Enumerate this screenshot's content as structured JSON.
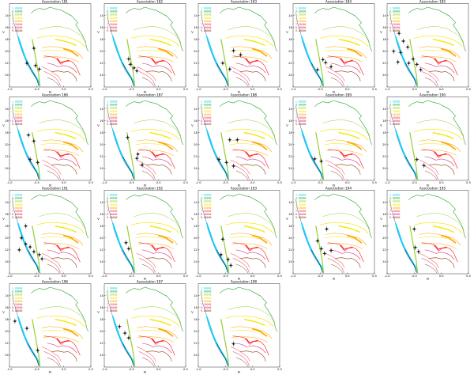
{
  "chart_data": {
    "type": "line",
    "xlabel": "R",
    "ylabel": "V",
    "xlim": [
      -1.0,
      0.5
    ],
    "ylim": [
      26,
      12
    ],
    "x_ticks": [
      "-1.0",
      "-0.5",
      "0.0",
      "0.5"
    ],
    "y_ticks": [
      "14",
      "16",
      "18",
      "20",
      "22",
      "24"
    ],
    "legend": {
      "placement": "top-left",
      "entries": [
        {
          "label": "1.00000",
          "color": "#00d8ff"
        },
        {
          "label": "4.00000",
          "color": "#28a428"
        },
        {
          "label": "5.00000",
          "color": "#9acd32"
        },
        {
          "label": "6.00000",
          "color": "#f5e600"
        },
        {
          "label": "7.00000",
          "color": "#ffa500"
        },
        {
          "label": "7.50000",
          "color": "#ff3030"
        },
        {
          "label": "8.00000",
          "color": "#cc1f6f"
        },
        {
          "label": "9.00000",
          "color": "#8b3a0a"
        }
      ]
    },
    "panels": [
      {
        "title": "Association 181",
        "points": [
          [
            -0.55,
            19.5
          ],
          [
            -0.68,
            22.0
          ],
          [
            -0.52,
            22.4
          ],
          [
            -0.45,
            23.0
          ]
        ]
      },
      {
        "title": "Association 182",
        "points": [
          [
            -0.55,
            21.3
          ],
          [
            -0.52,
            22.2
          ],
          [
            -0.45,
            22.8
          ],
          [
            -0.4,
            23.3
          ]
        ]
      },
      {
        "title": "Association 183",
        "points": [
          [
            -0.35,
            19.9
          ],
          [
            -0.22,
            20.6
          ],
          [
            -0.55,
            22.0
          ],
          [
            -0.42,
            23.0
          ]
        ]
      },
      {
        "title": "Association 184",
        "points": [
          [
            -0.45,
            21.4
          ],
          [
            -0.4,
            21.9
          ],
          [
            -0.3,
            22.6
          ],
          [
            -0.55,
            23.1
          ]
        ]
      },
      {
        "title": "Association 185",
        "points": [
          [
            -0.78,
            17.0
          ],
          [
            -0.7,
            18.3
          ],
          [
            -0.88,
            20.0
          ],
          [
            -0.75,
            20.2
          ],
          [
            -0.8,
            21.8
          ],
          [
            -0.6,
            22.0
          ],
          [
            -0.52,
            21.3
          ],
          [
            -0.45,
            22.2
          ],
          [
            -0.38,
            23.1
          ],
          [
            -0.62,
            19.3
          ]
        ]
      },
      {
        "title": "Association 186",
        "points": [
          [
            -0.65,
            18.4
          ],
          [
            -0.55,
            19.4
          ],
          [
            -0.62,
            22.5
          ],
          [
            -0.48,
            23.0
          ]
        ]
      },
      {
        "title": "Association 187",
        "points": [
          [
            -0.57,
            18.8
          ],
          [
            -0.38,
            21.6
          ],
          [
            -0.4,
            22.3
          ],
          [
            -0.3,
            23.4
          ]
        ]
      },
      {
        "title": "Association 188",
        "points": [
          [
            -0.42,
            19.2
          ],
          [
            -0.28,
            19.2
          ],
          [
            -0.62,
            22.5
          ],
          [
            -0.48,
            23.0
          ],
          [
            -0.35,
            23.6
          ]
        ]
      },
      {
        "title": "Association 189",
        "points": [
          [
            -0.6,
            22.4
          ],
          [
            -0.48,
            22.8
          ]
        ]
      },
      {
        "title": "Association 190",
        "points": [
          [
            -0.45,
            22.5
          ],
          [
            -0.32,
            23.5
          ]
        ]
      },
      {
        "title": "Association 191",
        "points": [
          [
            -0.7,
            18.0
          ],
          [
            -0.78,
            20.0
          ],
          [
            -0.7,
            21.0
          ],
          [
            -0.62,
            21.5
          ],
          [
            -0.82,
            22.0
          ],
          [
            -0.55,
            22.3
          ],
          [
            -0.45,
            22.8
          ],
          [
            -0.4,
            23.5
          ]
        ]
      },
      {
        "title": "Association 192",
        "points": [
          [
            -0.6,
            20.8
          ],
          [
            -0.55,
            21.8
          ]
        ]
      },
      {
        "title": "Association 193",
        "points": [
          [
            -0.55,
            20.2
          ],
          [
            -0.58,
            22.8
          ],
          [
            -0.45,
            23.6
          ],
          [
            -0.4,
            24.6
          ]
        ]
      },
      {
        "title": "Association 194",
        "points": [
          [
            -0.38,
            18.5
          ],
          [
            -0.55,
            20.5
          ],
          [
            -0.48,
            21.8
          ],
          [
            -0.42,
            22.6
          ],
          [
            -0.3,
            22.1
          ]
        ]
      },
      {
        "title": "Association 195",
        "points": [
          [
            -0.5,
            18.5
          ],
          [
            -0.48,
            21.6
          ],
          [
            -0.42,
            22.3
          ]
        ]
      },
      {
        "title": "Association 196",
        "points": [
          [
            -0.9,
            18.3
          ],
          [
            -0.68,
            19.5
          ],
          [
            -0.48,
            23.2
          ]
        ]
      },
      {
        "title": "Association 197",
        "points": [
          [
            -0.72,
            19.2
          ],
          [
            -0.62,
            20.3
          ],
          [
            -0.55,
            21.1
          ]
        ]
      },
      {
        "title": "Association 198",
        "points": [
          [
            -0.35,
            22.1
          ]
        ]
      }
    ]
  }
}
